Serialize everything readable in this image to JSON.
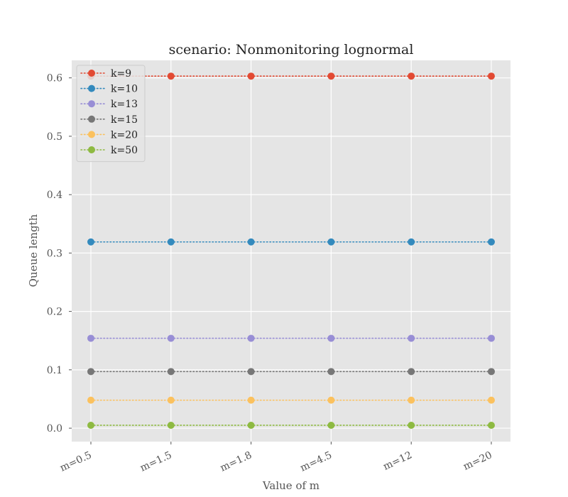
{
  "chart_data": {
    "type": "line",
    "title": "scenario: Nonmonitoring lognormal",
    "xlabel": "Value of m",
    "ylabel": "Queue length",
    "categories": [
      "m=0.5",
      "m=1.5",
      "m=1.8",
      "m=4.5",
      "m=12",
      "m=20"
    ],
    "ylim": [
      -0.023,
      0.63
    ],
    "yticks": [
      0.0,
      0.1,
      0.2,
      0.3,
      0.4,
      0.5,
      0.6
    ],
    "grid": true,
    "legend_position": "top-left",
    "line_style": "dotted",
    "series": [
      {
        "name": "k=9",
        "color": "#E24A33",
        "values": [
          0.603,
          0.603,
          0.603,
          0.603,
          0.603,
          0.603
        ]
      },
      {
        "name": "k=10",
        "color": "#348ABD",
        "values": [
          0.319,
          0.319,
          0.319,
          0.319,
          0.319,
          0.319
        ]
      },
      {
        "name": "k=13",
        "color": "#988ED5",
        "values": [
          0.154,
          0.154,
          0.154,
          0.154,
          0.154,
          0.154
        ]
      },
      {
        "name": "k=15",
        "color": "#777777",
        "values": [
          0.097,
          0.097,
          0.097,
          0.097,
          0.097,
          0.097
        ]
      },
      {
        "name": "k=20",
        "color": "#FBC15E",
        "values": [
          0.048,
          0.048,
          0.048,
          0.048,
          0.048,
          0.048
        ]
      },
      {
        "name": "k=50",
        "color": "#8EBA42",
        "values": [
          0.005,
          0.005,
          0.005,
          0.005,
          0.005,
          0.005
        ]
      }
    ]
  }
}
